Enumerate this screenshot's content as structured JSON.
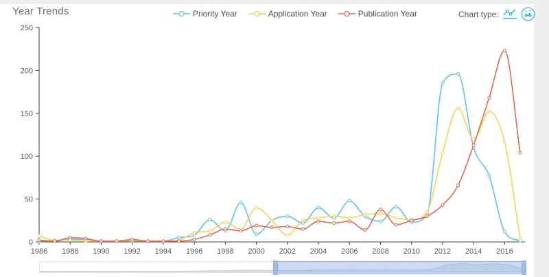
{
  "header": {
    "title": "Year Trends"
  },
  "chart_type": {
    "label": "Chart type:",
    "icons": [
      {
        "name": "line-chart-icon",
        "color": "#2b9fd4"
      },
      {
        "name": "area-chart-circle-icon",
        "color": "#2fb5c7"
      }
    ]
  },
  "legend": {
    "position": "top-center",
    "items": [
      {
        "label": "Priority Year",
        "color": "#5cc2ee"
      },
      {
        "label": "Application Year",
        "color": "#f7d155"
      },
      {
        "label": "Publication Year",
        "color": "#e26a50"
      }
    ]
  },
  "chart_data": {
    "type": "line",
    "title": "Year Trends",
    "smooth": true,
    "grid": false,
    "x": [
      1986,
      1987,
      1988,
      1989,
      1990,
      1991,
      1992,
      1993,
      1994,
      1995,
      1996,
      1997,
      1998,
      1999,
      2000,
      2001,
      2002,
      2003,
      2004,
      2005,
      2006,
      2007,
      2008,
      2009,
      2010,
      2011,
      2012,
      2013,
      2014,
      2015,
      2016,
      2017
    ],
    "x_tick_labels": [
      "1986",
      "1988",
      "1990",
      "1992",
      "1994",
      "1996",
      "1998",
      "2000",
      "2002",
      "2004",
      "2006",
      "2008",
      "2010",
      "2012",
      "2014",
      "2016"
    ],
    "x_tick_step": 2,
    "ylim": [
      0,
      250
    ],
    "y_ticks": [
      0,
      50,
      100,
      150,
      200,
      250
    ],
    "series": [
      {
        "name": "Priority Year",
        "color": "#5cc2ee",
        "values": [
          1,
          1,
          3,
          3,
          1,
          1,
          1,
          1,
          1,
          5,
          8,
          26,
          13,
          46,
          9,
          25,
          30,
          22,
          40,
          28,
          48,
          30,
          24,
          41,
          23,
          32,
          185,
          196,
          110,
          77,
          12,
          1
        ]
      },
      {
        "name": "Application Year",
        "color": "#f7d155",
        "values": [
          7,
          2,
          2,
          1,
          1,
          1,
          2,
          1,
          1,
          2,
          11,
          13,
          23,
          15,
          40,
          25,
          8,
          25,
          28,
          30,
          28,
          32,
          33,
          28,
          26,
          35,
          104,
          156,
          120,
          152,
          116,
          4
        ]
      },
      {
        "name": "Publication Year",
        "color": "#e26a50",
        "values": [
          2,
          1,
          5,
          4,
          1,
          1,
          3,
          1,
          1,
          1,
          3,
          8,
          15,
          13,
          19,
          17,
          18,
          15,
          24,
          22,
          24,
          14,
          38,
          20,
          25,
          30,
          43,
          66,
          113,
          168,
          223,
          104
        ]
      }
    ],
    "axis_color": "#3f3f3f",
    "tick_label_color": "#5a5a5a"
  },
  "datazoom": {
    "window_start_pct": 48.4,
    "window_end_pct": 100
  }
}
